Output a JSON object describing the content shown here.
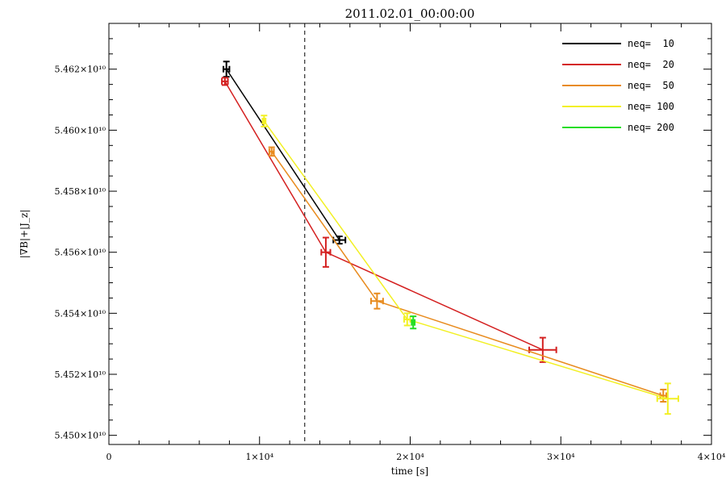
{
  "chart_data": {
    "type": "scatter",
    "title": "2011.02.01_00:00:00",
    "xlabel": "time [s]",
    "ylabel": "|∇B|+|J_z|",
    "xlim": [
      0,
      40000
    ],
    "ylim": [
      54497000000.0,
      54635000000.0
    ],
    "x_ticks": [
      {
        "value": 0,
        "label": "0"
      },
      {
        "value": 10000,
        "label": "1×10⁴"
      },
      {
        "value": 20000,
        "label": "2×10⁴"
      },
      {
        "value": 30000,
        "label": "3×10⁴"
      },
      {
        "value": 40000,
        "label": "4×10⁴"
      }
    ],
    "y_ticks": [
      {
        "value": 54500000000.0,
        "label": "5.450×10¹⁰"
      },
      {
        "value": 54520000000.0,
        "label": "5.452×10¹⁰"
      },
      {
        "value": 54540000000.0,
        "label": "5.454×10¹⁰"
      },
      {
        "value": 54560000000.0,
        "label": "5.456×10¹⁰"
      },
      {
        "value": 54580000000.0,
        "label": "5.458×10¹⁰"
      },
      {
        "value": 54600000000.0,
        "label": "5.460×10¹⁰"
      },
      {
        "value": 54620000000.0,
        "label": "5.462×10¹⁰"
      }
    ],
    "vline_x": 13000,
    "legend_position": "top-right",
    "series": [
      {
        "name": "neq=  10",
        "color": "#000000",
        "points": [
          {
            "x": 7800,
            "y": 54620000000.0,
            "xerr": 200,
            "yerr": 2500000.0
          },
          {
            "x": 15300,
            "y": 54564000000.0,
            "xerr": 400,
            "yerr": 1200000.0
          }
        ]
      },
      {
        "name": "neq=  20",
        "color": "#d42020",
        "points": [
          {
            "x": 7700,
            "y": 54616000000.0,
            "xerr": 200,
            "yerr": 1200000.0
          },
          {
            "x": 14400,
            "y": 54560000000.0,
            "xerr": 300,
            "yerr": 4800000.0
          },
          {
            "x": 28800,
            "y": 54528000000.0,
            "xerr": 900,
            "yerr": 4000000.0
          }
        ]
      },
      {
        "name": "neq=  50",
        "color": "#e88b1e",
        "points": [
          {
            "x": 10800,
            "y": 54593000000.0,
            "xerr": 150,
            "yerr": 1400000.0
          },
          {
            "x": 17800,
            "y": 54544000000.0,
            "xerr": 400,
            "yerr": 2500000.0
          },
          {
            "x": 36800,
            "y": 54513000000.0,
            "xerr": 200,
            "yerr": 2000000.0
          }
        ]
      },
      {
        "name": "neq= 100",
        "color": "#f2f024",
        "points": [
          {
            "x": 10300,
            "y": 54603000000.0,
            "xerr": 100,
            "yerr": 1800000.0
          },
          {
            "x": 19800,
            "y": 54538000000.0,
            "xerr": 200,
            "yerr": 2000000.0
          },
          {
            "x": 37100,
            "y": 54512000000.0,
            "xerr": 700,
            "yerr": 5000000.0
          }
        ]
      },
      {
        "name": "neq= 200",
        "color": "#22dd22",
        "points": [
          {
            "x": 20200,
            "y": 54537000000.0,
            "xerr": 100,
            "yerr": 2000000.0
          }
        ]
      }
    ]
  }
}
